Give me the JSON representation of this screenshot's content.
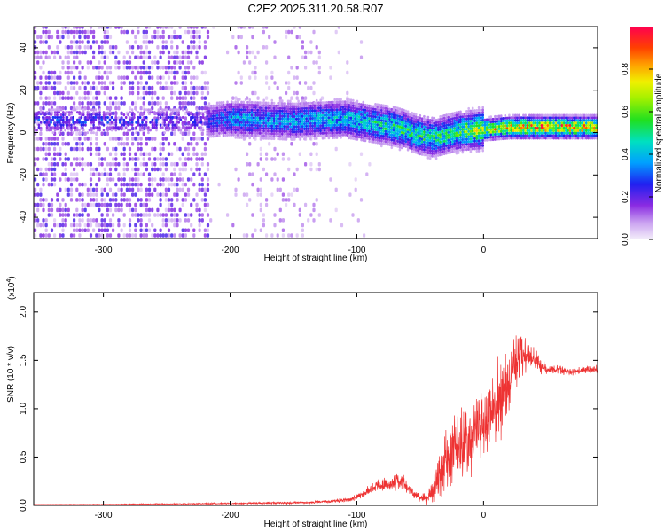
{
  "title": "C2E2.2025.311.20.58.R07",
  "chart_data": [
    {
      "type": "heatmap",
      "xlabel": "Height of straight line (km)",
      "ylabel": "Frequency (Hz)",
      "xlim": [
        -355,
        90
      ],
      "ylim": [
        -50,
        50
      ],
      "xticks": [
        -300,
        -200,
        -100,
        0
      ],
      "yticks": [
        -40,
        -20,
        0,
        20,
        40
      ],
      "colorbar": {
        "label": "Normalized spectral amplitude",
        "range": [
          0,
          1
        ],
        "ticks": [
          "0.0",
          "0.2",
          "0.4",
          "0.6",
          "0.8"
        ]
      },
      "spectral_ridge": {
        "description_x": [
          -340,
          -220,
          -200,
          -150,
          -110,
          -90,
          -70,
          -50,
          -40,
          -20,
          0,
          20,
          40,
          60,
          90
        ],
        "frequency_hz": [
          5,
          5,
          6,
          5,
          6,
          4,
          2,
          -2,
          -3,
          0,
          1,
          2,
          2,
          2,
          2
        ],
        "peak_amplitude": [
          0.3,
          0.25,
          0.4,
          0.4,
          0.45,
          0.5,
          0.55,
          0.55,
          0.55,
          0.6,
          0.75,
          0.85,
          0.9,
          0.9,
          0.85
        ]
      }
    },
    {
      "type": "line",
      "xlabel": "Height of straight line (km)",
      "ylabel": "SNR (10 * v/v)",
      "y_multiplier_label": "(x10",
      "y_multiplier_exp": "4",
      "xlim": [
        -355,
        90
      ],
      "ylim": [
        0,
        2.2
      ],
      "xticks": [
        -300,
        -200,
        -100,
        0
      ],
      "yticks": [
        "0.0",
        "0.5",
        "1.0",
        "1.5",
        "2.0"
      ],
      "color": "#ee3333",
      "series": [
        {
          "name": "SNR",
          "x": [
            -355,
            -300,
            -200,
            -140,
            -120,
            -105,
            -95,
            -85,
            -75,
            -65,
            -55,
            -50,
            -45,
            -40,
            -35,
            -30,
            -25,
            -20,
            -15,
            -10,
            -5,
            0,
            5,
            10,
            15,
            20,
            25,
            30,
            35,
            40,
            45,
            50,
            60,
            70,
            80,
            90
          ],
          "y": [
            0.01,
            0.01,
            0.02,
            0.03,
            0.04,
            0.06,
            0.12,
            0.2,
            0.22,
            0.25,
            0.12,
            0.08,
            0.08,
            0.15,
            0.3,
            0.45,
            0.55,
            0.6,
            0.65,
            0.7,
            0.8,
            0.85,
            0.9,
            1.0,
            1.15,
            1.3,
            1.45,
            1.6,
            1.55,
            1.5,
            1.45,
            1.4,
            1.4,
            1.38,
            1.4,
            1.4
          ],
          "spread": [
            0,
            0.005,
            0.01,
            0.015,
            0.02,
            0.03,
            0.05,
            0.08,
            0.1,
            0.1,
            0.05,
            0.05,
            0.08,
            0.15,
            0.35,
            0.4,
            0.4,
            0.45,
            0.45,
            0.45,
            0.45,
            0.45,
            0.5,
            0.5,
            0.45,
            0.4,
            0.35,
            0.3,
            0.25,
            0.15,
            0.1,
            0.08,
            0.05,
            0.05,
            0.05,
            0.05
          ]
        }
      ]
    }
  ]
}
